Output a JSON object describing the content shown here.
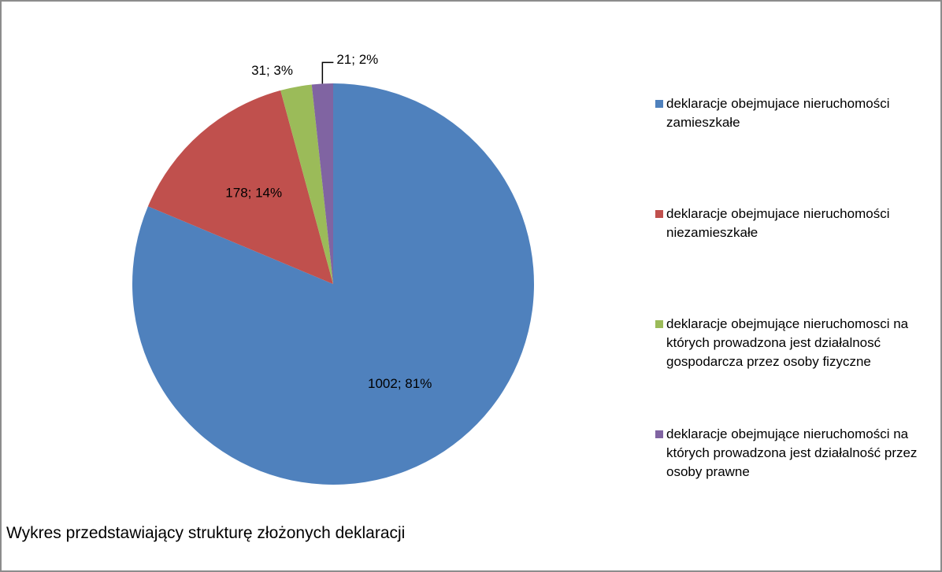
{
  "chart_data": {
    "type": "pie",
    "categories": [
      "deklaracje obejmujace nieruchomości zamieszkałe",
      "deklaracje obejmujace nieruchomości niezamieszkałe",
      "deklaracje obejmujące nieruchomosci na których prowadzona jest działalnosć gospodarcza przez osoby fizyczne",
      "deklaracje obejmujące nieruchomości na których prowadzona jest działalność przez osoby prawne"
    ],
    "values": [
      1002,
      178,
      31,
      21
    ],
    "value_labels": [
      "1002; 81%",
      "178; 14%",
      "31; 3%",
      "21; 2%"
    ],
    "colors": [
      "#4f81bd",
      "#c0504d",
      "#9bbb59",
      "#8064a2"
    ],
    "legend": "right",
    "caption": "Wykres przedstawiający strukturę złożonych deklaracji"
  }
}
